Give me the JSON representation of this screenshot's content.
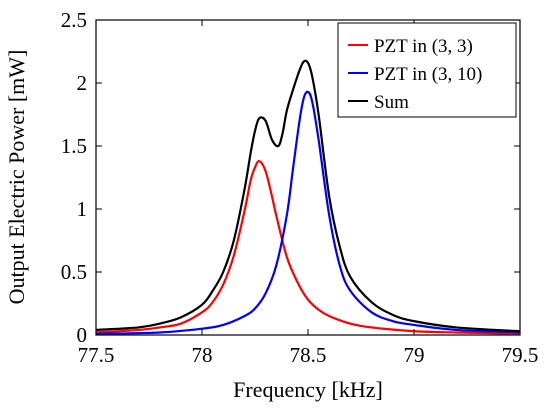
{
  "chart_data": {
    "type": "line",
    "title": "",
    "xlabel": "Frequency [kHz]",
    "ylabel": "Output Electric Power [mW]",
    "xlim": [
      77.5,
      79.5
    ],
    "ylim": [
      0,
      2.5
    ],
    "xticks": [
      77.5,
      78,
      78.5,
      79,
      79.5
    ],
    "xtick_labels": [
      "77.5",
      "78",
      "78.5",
      "79",
      "79.5"
    ],
    "yticks": [
      0,
      0.5,
      1,
      1.5,
      2,
      2.5
    ],
    "ytick_labels": [
      "0",
      "0.5",
      "1",
      "1.5",
      "2",
      "2.5"
    ],
    "grid": false,
    "legend_position": "top-right",
    "series": [
      {
        "name": "PZT in (3, 3)",
        "color": "#ff0000",
        "x": [
          77.5,
          77.7,
          77.8,
          77.9,
          78.0,
          78.05,
          78.1,
          78.15,
          78.2,
          78.23,
          78.25,
          78.27,
          78.3,
          78.33,
          78.35,
          78.4,
          78.45,
          78.5,
          78.55,
          78.6,
          78.7,
          78.8,
          79.0,
          79.2,
          79.5
        ],
        "y": [
          0.02,
          0.04,
          0.06,
          0.09,
          0.18,
          0.26,
          0.4,
          0.63,
          0.98,
          1.23,
          1.33,
          1.38,
          1.3,
          1.1,
          0.95,
          0.62,
          0.42,
          0.28,
          0.2,
          0.15,
          0.09,
          0.06,
          0.03,
          0.02,
          0.01
        ]
      },
      {
        "name": "PZT in (3, 10)",
        "color": "#0000ff",
        "x": [
          77.5,
          77.8,
          78.0,
          78.1,
          78.2,
          78.25,
          78.3,
          78.35,
          78.4,
          78.43,
          78.46,
          78.48,
          78.5,
          78.52,
          78.55,
          78.6,
          78.65,
          78.7,
          78.8,
          78.9,
          79.0,
          79.2,
          79.5
        ],
        "y": [
          0.01,
          0.02,
          0.05,
          0.08,
          0.15,
          0.21,
          0.33,
          0.55,
          0.95,
          1.33,
          1.7,
          1.88,
          1.93,
          1.85,
          1.55,
          0.95,
          0.55,
          0.35,
          0.18,
          0.11,
          0.08,
          0.04,
          0.02
        ]
      },
      {
        "name": "Sum",
        "color": "#000000",
        "x": [
          77.5,
          77.7,
          77.8,
          77.9,
          78.0,
          78.05,
          78.1,
          78.15,
          78.2,
          78.23,
          78.25,
          78.27,
          78.3,
          78.33,
          78.36,
          78.38,
          78.4,
          78.43,
          78.46,
          78.48,
          78.5,
          78.52,
          78.55,
          78.6,
          78.65,
          78.7,
          78.8,
          78.9,
          79.0,
          79.2,
          79.5
        ],
        "y": [
          0.04,
          0.06,
          0.09,
          0.14,
          0.24,
          0.35,
          0.5,
          0.75,
          1.15,
          1.45,
          1.62,
          1.72,
          1.7,
          1.55,
          1.5,
          1.6,
          1.78,
          1.95,
          2.1,
          2.17,
          2.16,
          2.05,
          1.75,
          1.1,
          0.7,
          0.46,
          0.26,
          0.16,
          0.11,
          0.06,
          0.03
        ]
      }
    ]
  }
}
